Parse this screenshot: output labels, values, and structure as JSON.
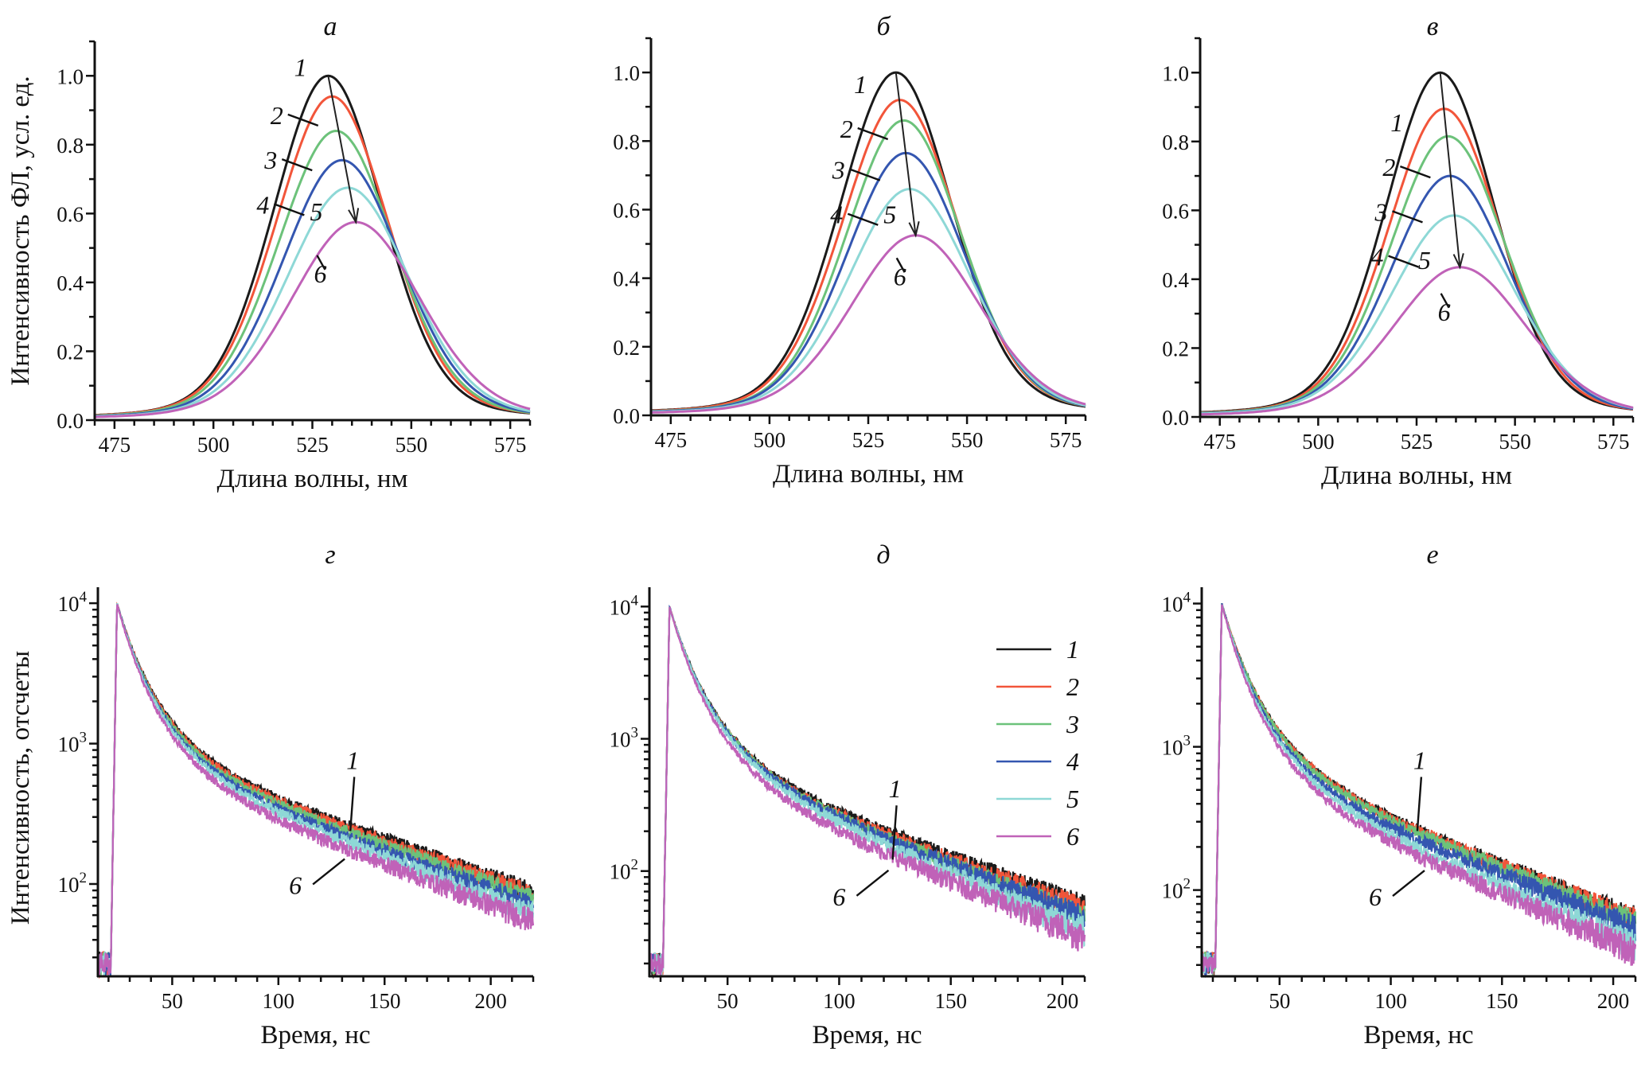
{
  "figure": {
    "ylabel_top": "Интенсивность ФЛ, усл. ед.",
    "ylabel_bottom": "Интенсивность, отсчеты",
    "colors": {
      "1": "#1a1a1a",
      "2": "#f2553a",
      "3": "#6cc27a",
      "4": "#3456b0",
      "5": "#8ed8d6",
      "6": "#c062b8"
    }
  },
  "legend": {
    "panel": "д",
    "placement": "right-middle",
    "entries": [
      "1",
      "2",
      "3",
      "4",
      "5",
      "6"
    ]
  },
  "chart_data": [
    {
      "id": "a",
      "title": "а",
      "type": "line",
      "xlabel": "Длина волны, нм",
      "ylabel": "Интенсивность ФЛ, усл. ед.",
      "xlim": [
        470,
        580
      ],
      "ylim": [
        0,
        1.1
      ],
      "xticks": [
        475,
        500,
        525,
        550,
        575
      ],
      "xtick_labels": [
        "475",
        "500",
        "525",
        "550",
        "575"
      ],
      "yticks": [
        0,
        0.2,
        0.4,
        0.6,
        0.8,
        1.0
      ],
      "ytick_labels": [
        "0.0",
        "0.2",
        "0.4",
        "0.6",
        "0.8",
        "1.0"
      ],
      "series": [
        {
          "name": "1",
          "peak_nm": 529.0,
          "peak_value": 1.0,
          "fwhm_nm": 33
        },
        {
          "name": "2",
          "peak_nm": 530.0,
          "peak_value": 0.94,
          "fwhm_nm": 34
        },
        {
          "name": "3",
          "peak_nm": 531.0,
          "peak_value": 0.84,
          "fwhm_nm": 35
        },
        {
          "name": "4",
          "peak_nm": 532.5,
          "peak_value": 0.755,
          "fwhm_nm": 36
        },
        {
          "name": "5",
          "peak_nm": 534.0,
          "peak_value": 0.675,
          "fwhm_nm": 37
        },
        {
          "name": "6",
          "peak_nm": 536.0,
          "peak_value": 0.575,
          "fwhm_nm": 39
        }
      ],
      "annotations": [
        {
          "text": "1",
          "x": 522,
          "y": 1.0
        },
        {
          "text": "2",
          "x": 516,
          "y": 0.86
        },
        {
          "text": "3",
          "x": 514.5,
          "y": 0.73
        },
        {
          "text": "4",
          "x": 512.5,
          "y": 0.6
        },
        {
          "text": "5",
          "x": 526,
          "y": 0.58
        },
        {
          "text": "6",
          "x": 527,
          "y": 0.4
        }
      ],
      "arrow": {
        "from": [
          529.0,
          1.0
        ],
        "to": [
          536.0,
          0.575
        ]
      }
    },
    {
      "id": "b",
      "title": "б",
      "type": "line",
      "xlabel": "Длина волны, нм",
      "ylabel": "",
      "xlim": [
        470,
        580
      ],
      "ylim": [
        0,
        1.1
      ],
      "xticks": [
        475,
        500,
        525,
        550,
        575
      ],
      "xtick_labels": [
        "475",
        "500",
        "525",
        "550",
        "575"
      ],
      "yticks": [
        0,
        0.2,
        0.4,
        0.6,
        0.8,
        1.0
      ],
      "ytick_labels": [
        "0.0",
        "0.2",
        "0.4",
        "0.6",
        "0.8",
        "1.0"
      ],
      "series": [
        {
          "name": "1",
          "peak_nm": 532.0,
          "peak_value": 1.0,
          "fwhm_nm": 34
        },
        {
          "name": "2",
          "peak_nm": 533.0,
          "peak_value": 0.92,
          "fwhm_nm": 35
        },
        {
          "name": "3",
          "peak_nm": 534.0,
          "peak_value": 0.86,
          "fwhm_nm": 35
        },
        {
          "name": "4",
          "peak_nm": 534.5,
          "peak_value": 0.765,
          "fwhm_nm": 36
        },
        {
          "name": "5",
          "peak_nm": 535.5,
          "peak_value": 0.66,
          "fwhm_nm": 37
        },
        {
          "name": "6",
          "peak_nm": 537.0,
          "peak_value": 0.525,
          "fwhm_nm": 39
        }
      ],
      "annotations": [
        {
          "text": "1",
          "x": 523,
          "y": 0.94
        },
        {
          "text": "2",
          "x": 519.5,
          "y": 0.81
        },
        {
          "text": "3",
          "x": 517.5,
          "y": 0.69
        },
        {
          "text": "4",
          "x": 517,
          "y": 0.56
        },
        {
          "text": "5",
          "x": 530.5,
          "y": 0.56
        },
        {
          "text": "6",
          "x": 533,
          "y": 0.38
        }
      ],
      "arrow": {
        "from": [
          532.0,
          1.0
        ],
        "to": [
          537.0,
          0.525
        ]
      }
    },
    {
      "id": "v",
      "title": "в",
      "type": "line",
      "xlabel": "Длина волны, нм",
      "ylabel": "",
      "xlim": [
        470,
        580
      ],
      "ylim": [
        0,
        1.1
      ],
      "xticks": [
        475,
        500,
        525,
        550,
        575
      ],
      "xtick_labels": [
        "475",
        "500",
        "525",
        "550",
        "575"
      ],
      "yticks": [
        0,
        0.2,
        0.4,
        0.6,
        0.8,
        1.0
      ],
      "ytick_labels": [
        "0.0",
        "0.2",
        "0.4",
        "0.6",
        "0.8",
        "1.0"
      ],
      "series": [
        {
          "name": "1",
          "peak_nm": 531.0,
          "peak_value": 1.0,
          "fwhm_nm": 33
        },
        {
          "name": "2",
          "peak_nm": 532.0,
          "peak_value": 0.895,
          "fwhm_nm": 34
        },
        {
          "name": "3",
          "peak_nm": 533.0,
          "peak_value": 0.815,
          "fwhm_nm": 35
        },
        {
          "name": "4",
          "peak_nm": 533.5,
          "peak_value": 0.7,
          "fwhm_nm": 36
        },
        {
          "name": "5",
          "peak_nm": 534.5,
          "peak_value": 0.585,
          "fwhm_nm": 38
        },
        {
          "name": "6",
          "peak_nm": 536.0,
          "peak_value": 0.435,
          "fwhm_nm": 40
        }
      ],
      "annotations": [
        {
          "text": "1",
          "x": 520,
          "y": 0.83
        },
        {
          "text": "2",
          "x": 518,
          "y": 0.7
        },
        {
          "text": "3",
          "x": 516,
          "y": 0.57
        },
        {
          "text": "4",
          "x": 515,
          "y": 0.44
        },
        {
          "text": "5",
          "x": 527,
          "y": 0.43
        },
        {
          "text": "6",
          "x": 532,
          "y": 0.28
        }
      ],
      "arrow": {
        "from": [
          531.0,
          1.0
        ],
        "to": [
          536.0,
          0.435
        ]
      }
    },
    {
      "id": "g",
      "title": "г",
      "type": "line",
      "yscale": "log",
      "xlabel": "Время, нс",
      "ylabel": "Интенсивность, отсчеты",
      "xlim": [
        15,
        220
      ],
      "ylim": [
        22,
        13000
      ],
      "xticks": [
        50,
        100,
        150,
        200
      ],
      "xtick_labels": [
        "50",
        "100",
        "150",
        "200"
      ],
      "yticks": [
        100,
        1000,
        10000
      ],
      "ytick_labels": [
        "10|2",
        "10|3",
        "10|4"
      ],
      "peak_time_ns": 24,
      "peak_counts": 10000,
      "series": [
        {
          "name": "1",
          "counts_at_100ns": 380,
          "counts_at_end": 90
        },
        {
          "name": "2",
          "counts_at_100ns": 365,
          "counts_at_end": 85
        },
        {
          "name": "3",
          "counts_at_100ns": 345,
          "counts_at_end": 78
        },
        {
          "name": "4",
          "counts_at_100ns": 320,
          "counts_at_end": 70
        },
        {
          "name": "5",
          "counts_at_100ns": 300,
          "counts_at_end": 62
        },
        {
          "name": "6",
          "counts_at_100ns": 265,
          "counts_at_end": 55
        }
      ],
      "annotations": [
        {
          "text": "1",
          "x": 135,
          "y": 660
        },
        {
          "text": "6",
          "x": 108,
          "y": 85
        }
      ]
    },
    {
      "id": "d",
      "title": "д",
      "type": "line",
      "yscale": "log",
      "xlabel": "Время, нс",
      "ylabel": "",
      "xlim": [
        15,
        210
      ],
      "ylim": [
        16,
        14000
      ],
      "xticks": [
        50,
        100,
        150,
        200
      ],
      "xtick_labels": [
        "50",
        "100",
        "150",
        "200"
      ],
      "yticks": [
        100,
        1000,
        10000
      ],
      "ytick_labels": [
        "10|2",
        "10|3",
        "10|4"
      ],
      "peak_time_ns": 24,
      "peak_counts": 10000,
      "series": [
        {
          "name": "1",
          "counts_at_100ns": 260,
          "counts_at_end": 55
        },
        {
          "name": "2",
          "counts_at_100ns": 250,
          "counts_at_end": 52
        },
        {
          "name": "3",
          "counts_at_100ns": 240,
          "counts_at_end": 45
        },
        {
          "name": "4",
          "counts_at_100ns": 235,
          "counts_at_end": 45
        },
        {
          "name": "5",
          "counts_at_100ns": 215,
          "counts_at_end": 36
        },
        {
          "name": "6",
          "counts_at_100ns": 185,
          "counts_at_end": 32
        }
      ],
      "annotations": [
        {
          "text": "1",
          "x": 125,
          "y": 360
        },
        {
          "text": "6",
          "x": 100,
          "y": 55
        }
      ]
    },
    {
      "id": "e",
      "title": "е",
      "type": "line",
      "yscale": "log",
      "xlabel": "Время, нс",
      "ylabel": "",
      "xlim": [
        15,
        210
      ],
      "ylim": [
        25,
        13000
      ],
      "xticks": [
        50,
        100,
        150,
        200
      ],
      "xtick_labels": [
        "50",
        "100",
        "150",
        "200"
      ],
      "yticks": [
        100,
        1000,
        10000
      ],
      "ytick_labels": [
        "10|2",
        "10|3",
        "10|4"
      ],
      "peak_time_ns": 24,
      "peak_counts": 10000,
      "series": [
        {
          "name": "1",
          "counts_at_100ns": 300,
          "counts_at_end": 65
        },
        {
          "name": "2",
          "counts_at_100ns": 295,
          "counts_at_end": 63
        },
        {
          "name": "3",
          "counts_at_100ns": 285,
          "counts_at_end": 60
        },
        {
          "name": "4",
          "counts_at_100ns": 255,
          "counts_at_end": 55
        },
        {
          "name": "5",
          "counts_at_100ns": 225,
          "counts_at_end": 42
        },
        {
          "name": "6",
          "counts_at_100ns": 200,
          "counts_at_end": 38
        }
      ],
      "annotations": [
        {
          "text": "1",
          "x": 113,
          "y": 700
        },
        {
          "text": "6",
          "x": 93,
          "y": 78
        }
      ]
    }
  ]
}
